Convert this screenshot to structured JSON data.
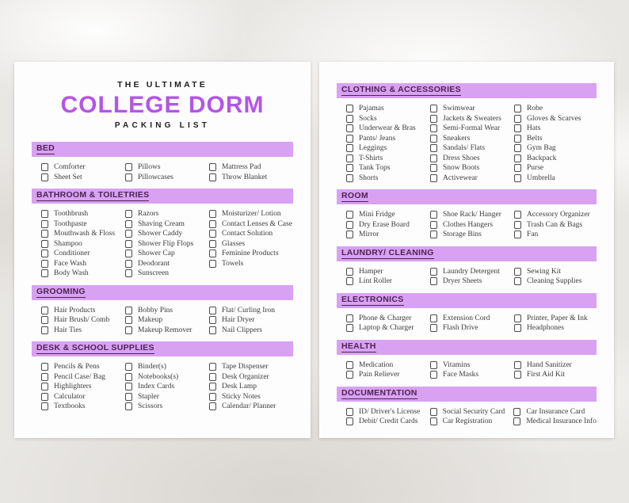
{
  "colors": {
    "title_accent": "#b355e8",
    "section_bar_background": "#d9a1f1",
    "section_bar_text": "#4d2356",
    "item_text": "#3b3b3b",
    "page_background": "#fdfdfd"
  },
  "title": {
    "pre": "THE ULTIMATE",
    "main": "COLLEGE DORM",
    "sub": "PACKING LIST"
  },
  "pages": [
    {
      "name": "left",
      "sections": [
        {
          "title": "BED",
          "columns": [
            [
              "Comforter",
              "Sheet Set"
            ],
            [
              "Pillows",
              "Pillowcases"
            ],
            [
              "Mattress Pad",
              "Throw Blanket"
            ]
          ]
        },
        {
          "title": "BATHROOM & TOILETRIES",
          "columns": [
            [
              "Toothbrush",
              "Toothpaste",
              "Mouthwash & Floss",
              "Shampoo",
              "Conditioner",
              "Face Wash",
              "Body Wash"
            ],
            [
              "Razors",
              "Shaving Cream",
              "Shower Caddy",
              "Shower Flip Flops",
              "Shower Cap",
              "Deodorant",
              "Sunscreen"
            ],
            [
              "Moisturizer/ Lotion",
              "Contact Lenses & Case",
              "Contact Solution",
              "Glasses",
              "Feminine Products",
              "Towels"
            ]
          ]
        },
        {
          "title": "GROOMING",
          "columns": [
            [
              "Hair Products",
              "Hair Brush/ Comb",
              "Hair Ties"
            ],
            [
              "Bobby Pins",
              "Makeup",
              "Makeup Remover"
            ],
            [
              "Flat/ Curling Iron",
              "Hair Dryer",
              "Nail Clippers"
            ]
          ]
        },
        {
          "title": "DESK & SCHOOL SUPPLIES",
          "columns": [
            [
              "Pencils & Pens",
              "Pencil Case/ Bag",
              "Highlighters",
              "Calculator",
              "Textbooks"
            ],
            [
              "Binder(s)",
              "Notebooks(s)",
              "Index Cards",
              "Stapler",
              "Scissors"
            ],
            [
              "Tape Dispenser",
              "Desk Organizer",
              "Desk Lamp",
              "Sticky Notes",
              "Calendar/ Planner"
            ]
          ]
        }
      ]
    },
    {
      "name": "right",
      "sections": [
        {
          "title": "CLOTHING & ACCESSORIES",
          "columns": [
            [
              "Pajamas",
              "Socks",
              "Underwear & Bras",
              "Pants/ Jeans",
              "Leggings",
              "T-Shirts",
              "Tank Tops",
              "Shorts"
            ],
            [
              "Swimwear",
              "Jackets & Sweaters",
              "Semi-Formal Wear",
              "Sneakers",
              "Sandals/ Flats",
              "Dress Shoes",
              "Snow Boots",
              "Activewear"
            ],
            [
              "Robe",
              "Gloves & Scarves",
              "Hats",
              "Belts",
              "Gym Bag",
              "Backpack",
              "Purse",
              "Umbrella"
            ]
          ]
        },
        {
          "title": "ROOM",
          "columns": [
            [
              "Mini Fridge",
              "Dry Erase Board",
              "Mirror"
            ],
            [
              "Shoe Rack/ Hanger",
              "Clothes Hangers",
              "Storage Bins"
            ],
            [
              "Accessory Organizer",
              "Trash Can & Bags",
              "Fan"
            ]
          ]
        },
        {
          "title": "LAUNDRY/ CLEANING",
          "columns": [
            [
              "Hamper",
              "Lint Roller"
            ],
            [
              "Laundry Detergent",
              "Dryer Sheets"
            ],
            [
              "Sewing Kit",
              "Cleaning Supplies"
            ]
          ]
        },
        {
          "title": "ELECTRONICS",
          "columns": [
            [
              "Phone & Charger",
              "Laptop & Charger"
            ],
            [
              "Extension Cord",
              "Flash Drive"
            ],
            [
              "Printer, Paper & Ink",
              "Headphones"
            ]
          ]
        },
        {
          "title": "HEALTH",
          "columns": [
            [
              "Medication",
              "Pain Reliever"
            ],
            [
              "Vitamins",
              "Face Masks"
            ],
            [
              "Hand Sanitizer",
              "First Aid Kit"
            ]
          ]
        },
        {
          "title": "DOCUMENTATION",
          "columns": [
            [
              "ID/ Driver's License",
              "Debit/ Credit Cards"
            ],
            [
              "Social Security Card",
              "Car Registration"
            ],
            [
              "Car Insurance Card",
              "Medical Insurance Info"
            ]
          ]
        }
      ]
    }
  ]
}
